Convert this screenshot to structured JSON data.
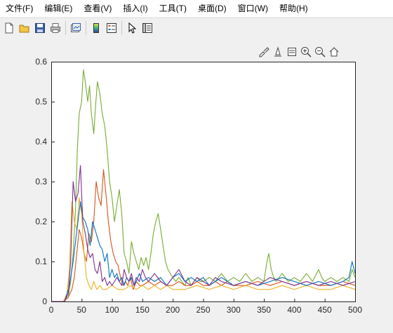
{
  "menu": [
    {
      "label": "文件(F)"
    },
    {
      "label": "编辑(E)"
    },
    {
      "label": "查看(V)"
    },
    {
      "label": "插入(I)"
    },
    {
      "label": "工具(T)"
    },
    {
      "label": "桌面(D)"
    },
    {
      "label": "窗口(W)"
    },
    {
      "label": "帮助(H)"
    }
  ],
  "toolbar_icons": [
    "new-figure-icon",
    "open-file-icon",
    "save-icon",
    "print-icon",
    "link-plot-icon",
    "insert-colorbar-icon",
    "insert-legend-icon",
    "edit-plot-icon",
    "property-inspector-icon"
  ],
  "axes_toolbar_icons": [
    "brush-icon",
    "data-tips-icon",
    "restore-view-icon",
    "zoom-in-icon",
    "zoom-out-icon",
    "home-icon"
  ],
  "chart_data": {
    "type": "line",
    "title": "",
    "xlabel": "",
    "ylabel": "",
    "xlim": [
      0,
      500
    ],
    "ylim": [
      0,
      0.6
    ],
    "xticks": [
      "0",
      "50",
      "100",
      "150",
      "200",
      "250",
      "300",
      "350",
      "400",
      "450",
      "500"
    ],
    "yticks": [
      "0",
      "0.1",
      "0.2",
      "0.3",
      "0.4",
      "0.5",
      "0.6"
    ],
    "grid": false,
    "series": [
      {
        "color": "#77ac30",
        "x": [
          0,
          20,
          28,
          32,
          36,
          40,
          43,
          46,
          50,
          53,
          56,
          60,
          63,
          66,
          70,
          73,
          76,
          80,
          84,
          88,
          92,
          96,
          100,
          104,
          108,
          112,
          116,
          120,
          124,
          128,
          132,
          136,
          140,
          144,
          148,
          152,
          156,
          160,
          164,
          168,
          172,
          176,
          180,
          184,
          188,
          192,
          196,
          200,
          205,
          210,
          215,
          220,
          225,
          230,
          235,
          240,
          245,
          250,
          260,
          270,
          280,
          290,
          300,
          310,
          320,
          330,
          340,
          350,
          355,
          358,
          362,
          366,
          370,
          380,
          390,
          400,
          410,
          420,
          430,
          440,
          445,
          450,
          460,
          470,
          480,
          490,
          495,
          500
        ],
        "y": [
          0,
          0,
          0.01,
          0.05,
          0.12,
          0.23,
          0.38,
          0.47,
          0.5,
          0.58,
          0.55,
          0.5,
          0.54,
          0.47,
          0.42,
          0.49,
          0.55,
          0.52,
          0.47,
          0.44,
          0.38,
          0.3,
          0.26,
          0.2,
          0.24,
          0.28,
          0.22,
          0.12,
          0.1,
          0.07,
          0.15,
          0.12,
          0.1,
          0.08,
          0.11,
          0.09,
          0.11,
          0.08,
          0.12,
          0.17,
          0.2,
          0.22,
          0.18,
          0.14,
          0.1,
          0.08,
          0.07,
          0.06,
          0.05,
          0.06,
          0.05,
          0.04,
          0.06,
          0.04,
          0.05,
          0.06,
          0.05,
          0.05,
          0.06,
          0.05,
          0.07,
          0.05,
          0.06,
          0.05,
          0.07,
          0.05,
          0.06,
          0.05,
          0.1,
          0.12,
          0.08,
          0.06,
          0.05,
          0.07,
          0.05,
          0.06,
          0.05,
          0.07,
          0.05,
          0.08,
          0.06,
          0.05,
          0.06,
          0.05,
          0.06,
          0.05,
          0.08,
          0.06
        ]
      },
      {
        "color": "#d95319",
        "x": [
          0,
          20,
          28,
          34,
          38,
          42,
          46,
          50,
          54,
          58,
          62,
          66,
          70,
          74,
          78,
          82,
          86,
          90,
          94,
          98,
          102,
          106,
          110,
          114,
          118,
          122,
          126,
          130,
          135,
          140,
          145,
          150,
          160,
          170,
          180,
          190,
          200,
          210,
          220,
          230,
          240,
          250,
          260,
          270,
          280,
          290,
          300,
          320,
          340,
          360,
          380,
          400,
          420,
          440,
          460,
          480,
          500
        ],
        "y": [
          0,
          0,
          0.01,
          0.03,
          0.06,
          0.12,
          0.18,
          0.16,
          0.12,
          0.1,
          0.17,
          0.15,
          0.2,
          0.3,
          0.26,
          0.24,
          0.33,
          0.27,
          0.2,
          0.15,
          0.12,
          0.1,
          0.09,
          0.06,
          0.04,
          0.05,
          0.04,
          0.06,
          0.03,
          0.05,
          0.04,
          0.04,
          0.05,
          0.04,
          0.05,
          0.04,
          0.04,
          0.05,
          0.04,
          0.04,
          0.05,
          0.04,
          0.04,
          0.05,
          0.04,
          0.05,
          0.04,
          0.04,
          0.05,
          0.04,
          0.05,
          0.04,
          0.05,
          0.04,
          0.04,
          0.05,
          0.04
        ]
      },
      {
        "color": "#edb120",
        "x": [
          0,
          20,
          26,
          30,
          34,
          38,
          42,
          46,
          50,
          54,
          58,
          62,
          66,
          70,
          75,
          80,
          85,
          90,
          100,
          110,
          120,
          130,
          140,
          150,
          160,
          170,
          180,
          190,
          200,
          220,
          240,
          260,
          280,
          300,
          320,
          340,
          360,
          380,
          400,
          420,
          440,
          460,
          480,
          500
        ],
        "y": [
          0,
          0,
          0.02,
          0.08,
          0.25,
          0.2,
          0.18,
          0.26,
          0.22,
          0.12,
          0.06,
          0.04,
          0.03,
          0.05,
          0.03,
          0.04,
          0.03,
          0.03,
          0.04,
          0.03,
          0.03,
          0.04,
          0.03,
          0.04,
          0.03,
          0.04,
          0.03,
          0.04,
          0.03,
          0.03,
          0.04,
          0.03,
          0.04,
          0.03,
          0.04,
          0.03,
          0.03,
          0.04,
          0.03,
          0.04,
          0.03,
          0.03,
          0.04,
          0.03
        ]
      },
      {
        "color": "#0072bd",
        "x": [
          0,
          22,
          30,
          36,
          40,
          44,
          48,
          52,
          56,
          60,
          64,
          68,
          72,
          76,
          80,
          84,
          88,
          92,
          96,
          100,
          104,
          108,
          112,
          116,
          120,
          124,
          128,
          132,
          136,
          140,
          145,
          150,
          160,
          170,
          180,
          190,
          200,
          210,
          220,
          230,
          240,
          250,
          260,
          270,
          280,
          290,
          300,
          320,
          340,
          360,
          380,
          400,
          420,
          440,
          460,
          480,
          490,
          495,
          500
        ],
        "y": [
          0,
          0,
          0.04,
          0.1,
          0.15,
          0.2,
          0.25,
          0.21,
          0.2,
          0.18,
          0.14,
          0.2,
          0.18,
          0.16,
          0.14,
          0.13,
          0.1,
          0.12,
          0.06,
          0.08,
          0.06,
          0.07,
          0.05,
          0.06,
          0.04,
          0.06,
          0.05,
          0.06,
          0.04,
          0.05,
          0.07,
          0.05,
          0.06,
          0.05,
          0.06,
          0.04,
          0.06,
          0.07,
          0.05,
          0.06,
          0.05,
          0.06,
          0.04,
          0.05,
          0.06,
          0.05,
          0.04,
          0.05,
          0.04,
          0.05,
          0.06,
          0.05,
          0.04,
          0.05,
          0.04,
          0.05,
          0.06,
          0.1,
          0.07
        ]
      },
      {
        "color": "#7e2f8e",
        "x": [
          0,
          22,
          28,
          32,
          36,
          40,
          44,
          48,
          52,
          56,
          60,
          64,
          68,
          72,
          76,
          80,
          84,
          88,
          92,
          96,
          100,
          104,
          108,
          112,
          116,
          120,
          124,
          128,
          132,
          136,
          140,
          145,
          150,
          155,
          160,
          170,
          180,
          190,
          200,
          210,
          220,
          230,
          240,
          250,
          260,
          270,
          280,
          300,
          320,
          340,
          360,
          380,
          400,
          420,
          440,
          460,
          480,
          500
        ],
        "y": [
          0,
          0,
          0.02,
          0.1,
          0.3,
          0.25,
          0.27,
          0.34,
          0.2,
          0.17,
          0.13,
          0.11,
          0.12,
          0.08,
          0.07,
          0.1,
          0.05,
          0.06,
          0.04,
          0.05,
          0.04,
          0.05,
          0.06,
          0.05,
          0.04,
          0.08,
          0.06,
          0.05,
          0.07,
          0.04,
          0.06,
          0.05,
          0.08,
          0.06,
          0.05,
          0.07,
          0.05,
          0.04,
          0.06,
          0.08,
          0.05,
          0.04,
          0.06,
          0.05,
          0.04,
          0.06,
          0.05,
          0.04,
          0.05,
          0.04,
          0.06,
          0.05,
          0.04,
          0.05,
          0.04,
          0.05,
          0.04,
          0.05
        ]
      }
    ]
  }
}
